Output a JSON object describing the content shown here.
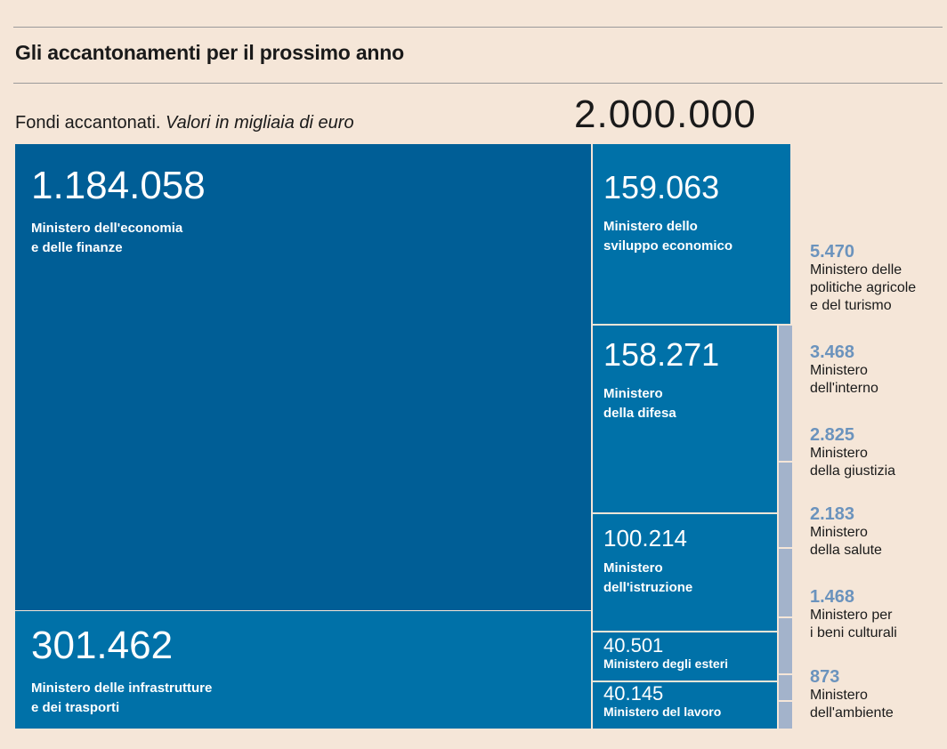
{
  "title": "Gli accantonamenti per il prossimo anno",
  "subtitle_main": "Fondi accantonati.",
  "subtitle_italic": "Valori in migliaia di euro",
  "total_value": "2.000.000",
  "colors": {
    "background": "#f5e6d8",
    "tile_dark": "#005e96",
    "tile_mid": "#0071a8",
    "tile_light": "#a3b3cb",
    "small_value_text": "#6b93bd"
  },
  "chart_data": {
    "type": "treemap",
    "title": "Gli accantonamenti per il prossimo anno",
    "unit": "Valori in migliaia di euro",
    "total": 2000000,
    "items": [
      {
        "name": "Ministero dell'economia\ne delle finanze",
        "value": 1184058,
        "label": "1.184.058"
      },
      {
        "name": "Ministero delle infrastrutture\ne dei trasporti",
        "value": 301462,
        "label": "301.462"
      },
      {
        "name": "Ministero dello\nsviluppo economico",
        "value": 159063,
        "label": "159.063"
      },
      {
        "name": "Ministero\ndella difesa",
        "value": 158271,
        "label": "158.271"
      },
      {
        "name": "Ministero\ndell'istruzione",
        "value": 100214,
        "label": "100.214"
      },
      {
        "name": "Ministero degli esteri",
        "value": 40501,
        "label": "40.501"
      },
      {
        "name": "Ministero del lavoro",
        "value": 40145,
        "label": "40.145"
      },
      {
        "name": "Ministero delle\npolitiche agricole\ne del turismo",
        "value": 5470,
        "label": "5.470"
      },
      {
        "name": "Ministero\ndell'interno",
        "value": 3468,
        "label": "3.468"
      },
      {
        "name": "Ministero\ndella giustizia",
        "value": 2825,
        "label": "2.825"
      },
      {
        "name": "Ministero\ndella salute",
        "value": 2183,
        "label": "2.183"
      },
      {
        "name": "Ministero per\ni beni culturali",
        "value": 1468,
        "label": "1.468"
      },
      {
        "name": "Ministero\ndell'ambiente",
        "value": 873,
        "label": "873"
      }
    ]
  }
}
